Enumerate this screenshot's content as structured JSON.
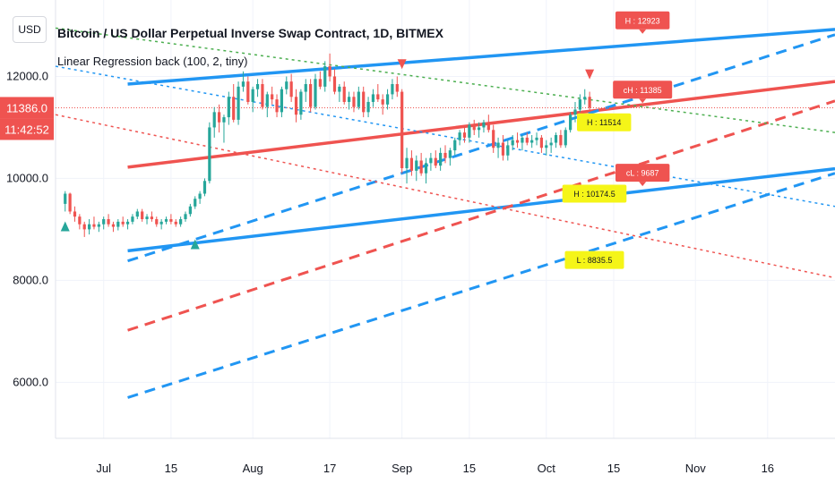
{
  "currency_button": "USD",
  "title": "Bitcoin / US Dollar Perpetual Inverse Swap Contract, 1D, BITMEX",
  "indicator": "Linear Regression back (100, 2, tiny)",
  "price_badge": "11386.0",
  "countdown_badge": "11:42:52",
  "colors": {
    "red": "#ef5350",
    "blue": "#2196f3",
    "green": "#26a69a",
    "green_dotted": "#4caf50",
    "yellow_label": "#f5f518",
    "current_price_line": "#ef5350"
  },
  "chart_data": {
    "type": "candlestick",
    "y_ticks": [
      "12000.0",
      "10000.0",
      "8000.0",
      "6000.0"
    ],
    "y_tick_values": [
      12000,
      10000,
      8000,
      6000
    ],
    "ylim": [
      4900,
      13500
    ],
    "x_ticks": [
      "Jul",
      "15",
      "Aug",
      "17",
      "Sep",
      "15",
      "Oct",
      "15",
      "Nov",
      "16"
    ],
    "x_tick_days": [
      0,
      14,
      31,
      47,
      62,
      76,
      92,
      106,
      123,
      138
    ],
    "xlim_days": [
      -10,
      152
    ],
    "current_price": 11386.0,
    "candles": [
      [
        -8,
        9500,
        9750,
        9350,
        9700
      ],
      [
        -7,
        9700,
        9720,
        9300,
        9350
      ],
      [
        -6,
        9350,
        9450,
        9150,
        9250
      ],
      [
        -5,
        9250,
        9300,
        9000,
        9100
      ],
      [
        -4,
        9100,
        9150,
        8850,
        9000
      ],
      [
        -3,
        9000,
        9200,
        8900,
        9100
      ],
      [
        -2,
        9100,
        9250,
        9000,
        9050
      ],
      [
        -1,
        9050,
        9150,
        8950,
        9100
      ],
      [
        0,
        9100,
        9250,
        9000,
        9200
      ],
      [
        1,
        9200,
        9300,
        9050,
        9100
      ],
      [
        2,
        9100,
        9150,
        8950,
        9050
      ],
      [
        3,
        9050,
        9200,
        8980,
        9150
      ],
      [
        4,
        9150,
        9250,
        9050,
        9100
      ],
      [
        5,
        9100,
        9200,
        9000,
        9150
      ],
      [
        6,
        9150,
        9300,
        9100,
        9250
      ],
      [
        7,
        9250,
        9400,
        9200,
        9350
      ],
      [
        8,
        9350,
        9400,
        9150,
        9200
      ],
      [
        9,
        9200,
        9300,
        9100,
        9250
      ],
      [
        10,
        9250,
        9350,
        9150,
        9200
      ],
      [
        11,
        9200,
        9250,
        9050,
        9100
      ],
      [
        12,
        9100,
        9200,
        9000,
        9150
      ],
      [
        13,
        9150,
        9250,
        9100,
        9200
      ],
      [
        14,
        9200,
        9300,
        9100,
        9150
      ],
      [
        15,
        9150,
        9200,
        9050,
        9100
      ],
      [
        16,
        9100,
        9250,
        9050,
        9200
      ],
      [
        17,
        9200,
        9350,
        9150,
        9300
      ],
      [
        18,
        9300,
        9500,
        9250,
        9450
      ],
      [
        19,
        9450,
        9650,
        9400,
        9600
      ],
      [
        20,
        9600,
        9750,
        9500,
        9700
      ],
      [
        21,
        9700,
        10000,
        9650,
        9950
      ],
      [
        22,
        9950,
        11100,
        9900,
        11000
      ],
      [
        23,
        11000,
        11400,
        10800,
        11300
      ],
      [
        24,
        11300,
        11450,
        10900,
        11100
      ],
      [
        25,
        11100,
        11250,
        10700,
        11200
      ],
      [
        26,
        11200,
        11700,
        11050,
        11600
      ],
      [
        27,
        11600,
        11850,
        11100,
        11150
      ],
      [
        28,
        11150,
        11900,
        11050,
        11800
      ],
      [
        29,
        11800,
        12100,
        11700,
        11900
      ],
      [
        30,
        11900,
        12000,
        11450,
        11500
      ],
      [
        31,
        11500,
        11800,
        11300,
        11750
      ],
      [
        32,
        11750,
        11950,
        11600,
        11850
      ],
      [
        33,
        11850,
        11950,
        11350,
        11400
      ],
      [
        34,
        11400,
        11700,
        11200,
        11650
      ],
      [
        35,
        11650,
        11800,
        11450,
        11550
      ],
      [
        36,
        11550,
        11650,
        11200,
        11300
      ],
      [
        37,
        11300,
        11800,
        11200,
        11750
      ],
      [
        38,
        11750,
        12000,
        11650,
        11900
      ],
      [
        39,
        11900,
        12050,
        11500,
        11600
      ],
      [
        40,
        11600,
        11750,
        11100,
        11250
      ],
      [
        41,
        11250,
        11750,
        11150,
        11700
      ],
      [
        42,
        11700,
        11950,
        11500,
        11850
      ],
      [
        43,
        11850,
        11950,
        11300,
        11400
      ],
      [
        44,
        11400,
        12050,
        11350,
        11950
      ],
      [
        45,
        11950,
        12100,
        11750,
        11800
      ],
      [
        46,
        11800,
        12300,
        11700,
        12200
      ],
      [
        47,
        12200,
        12450,
        11900,
        12000
      ],
      [
        48,
        12000,
        12150,
        11650,
        11700
      ],
      [
        49,
        11700,
        11850,
        11500,
        11800
      ],
      [
        50,
        11800,
        11900,
        11450,
        11500
      ],
      [
        51,
        11500,
        11700,
        11350,
        11600
      ],
      [
        52,
        11600,
        11700,
        11300,
        11400
      ],
      [
        53,
        11400,
        11800,
        11350,
        11700
      ],
      [
        54,
        11700,
        11800,
        11200,
        11300
      ],
      [
        55,
        11300,
        11600,
        11200,
        11500
      ],
      [
        56,
        11500,
        11750,
        11400,
        11650
      ],
      [
        57,
        11650,
        11850,
        11500,
        11550
      ],
      [
        58,
        11550,
        11650,
        11250,
        11450
      ],
      [
        59,
        11450,
        11750,
        11350,
        11650
      ],
      [
        60,
        11650,
        11950,
        11550,
        11850
      ],
      [
        61,
        11850,
        12000,
        11600,
        11700
      ],
      [
        62,
        11700,
        11750,
        10100,
        10200
      ],
      [
        63,
        10200,
        10600,
        9900,
        10400
      ],
      [
        64,
        10400,
        10550,
        10050,
        10150
      ],
      [
        65,
        10150,
        10450,
        9950,
        10350
      ],
      [
        66,
        10350,
        10500,
        10050,
        10100
      ],
      [
        67,
        10100,
        10400,
        9900,
        10300
      ],
      [
        68,
        10300,
        10500,
        10150,
        10400
      ],
      [
        69,
        10400,
        10550,
        10200,
        10250
      ],
      [
        70,
        10250,
        10600,
        10150,
        10500
      ],
      [
        71,
        10500,
        10650,
        10300,
        10400
      ],
      [
        72,
        10400,
        10600,
        10250,
        10550
      ],
      [
        73,
        10550,
        10800,
        10450,
        10750
      ],
      [
        74,
        10750,
        10950,
        10650,
        10900
      ],
      [
        75,
        10900,
        11050,
        10700,
        10800
      ],
      [
        76,
        10800,
        11100,
        10700,
        11050
      ],
      [
        77,
        11050,
        11150,
        10850,
        10950
      ],
      [
        78,
        10950,
        11100,
        10800,
        11000
      ],
      [
        79,
        11000,
        11150,
        10900,
        11100
      ],
      [
        80,
        11100,
        11250,
        10900,
        10950
      ],
      [
        81,
        10950,
        11050,
        10500,
        10600
      ],
      [
        82,
        10600,
        10800,
        10400,
        10700
      ],
      [
        83,
        10700,
        10850,
        10350,
        10450
      ],
      [
        84,
        10450,
        10750,
        10350,
        10650
      ],
      [
        85,
        10650,
        10850,
        10550,
        10750
      ],
      [
        86,
        10750,
        10900,
        10600,
        10700
      ],
      [
        87,
        10700,
        10850,
        10550,
        10800
      ],
      [
        88,
        10800,
        10900,
        10650,
        10700
      ],
      [
        89,
        10700,
        10850,
        10600,
        10750
      ],
      [
        90,
        10750,
        10900,
        10650,
        10800
      ],
      [
        91,
        10800,
        10850,
        10500,
        10600
      ],
      [
        92,
        10600,
        10750,
        10450,
        10650
      ],
      [
        93,
        10650,
        10800,
        10500,
        10700
      ],
      [
        94,
        10700,
        10900,
        10600,
        10850
      ],
      [
        95,
        10850,
        10950,
        10600,
        10650
      ],
      [
        96,
        10650,
        11000,
        10600,
        10950
      ],
      [
        97,
        10950,
        11300,
        10900,
        11250
      ],
      [
        98,
        11250,
        11500,
        11100,
        11350
      ],
      [
        99,
        11350,
        11650,
        11300,
        11550
      ],
      [
        100,
        11550,
        11750,
        11450,
        11600
      ],
      [
        101,
        11600,
        11700,
        11300,
        11386
      ]
    ],
    "lines": [
      {
        "color": "#2196f3",
        "dash": "solid",
        "from": [
          5,
          11850
        ],
        "to": [
          152,
          12923
        ]
      },
      {
        "color": "#2196f3",
        "dash": "solid",
        "from": [
          5,
          8580
        ],
        "to": [
          152,
          10190
        ]
      },
      {
        "color": "#ef5350",
        "dash": "solid",
        "from": [
          5,
          10220
        ],
        "to": [
          152,
          11900
        ]
      },
      {
        "color": "#2196f3",
        "dash": "long",
        "from": [
          5,
          8380
        ],
        "to": [
          152,
          12820
        ]
      },
      {
        "color": "#2196f3",
        "dash": "long",
        "from": [
          5,
          5700
        ],
        "to": [
          152,
          10100
        ]
      },
      {
        "color": "#ef5350",
        "dash": "long",
        "from": [
          5,
          7020
        ],
        "to": [
          152,
          11520
        ]
      },
      {
        "color": "#4caf50",
        "dash": "dotted",
        "from": [
          -10,
          12950
        ],
        "to": [
          152,
          10900
        ]
      },
      {
        "color": "#2196f3",
        "dash": "dotted",
        "from": [
          -10,
          12200
        ],
        "to": [
          152,
          9450
        ]
      },
      {
        "color": "#ef5350",
        "dash": "dotted",
        "from": [
          -10,
          11250
        ],
        "to": [
          152,
          8050
        ]
      }
    ],
    "labels": [
      {
        "text": "H : 12923",
        "style": "red",
        "day": 112,
        "value": 13100
      },
      {
        "text": "cH : 11385",
        "style": "red",
        "day": 112,
        "value": 11740
      },
      {
        "text": "cL : 9687",
        "style": "red",
        "day": 112,
        "value": 10110
      },
      {
        "text": "H : 11514",
        "style": "yellow",
        "day": 104,
        "value": 11100
      },
      {
        "text": "H : 10174.5",
        "style": "yellow",
        "day": 102,
        "value": 9700
      },
      {
        "text": "L : 8835.5",
        "style": "yellow",
        "day": 102,
        "value": 8400
      }
    ],
    "markers": [
      {
        "type": "up",
        "color": "#26a69a",
        "day": -8,
        "value": 9050
      },
      {
        "type": "up",
        "color": "#26a69a",
        "day": 19,
        "value": 8700
      },
      {
        "type": "down",
        "color": "#ef5350",
        "day": 62,
        "value": 12250
      },
      {
        "type": "down",
        "color": "#ef5350",
        "day": 101,
        "value": 12050
      }
    ]
  }
}
